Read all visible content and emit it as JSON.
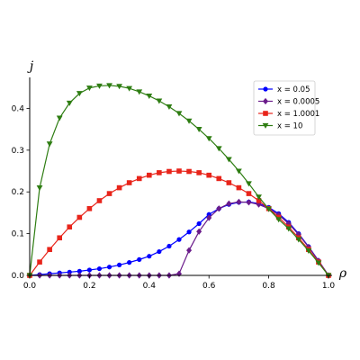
{
  "chart_data": {
    "type": "line",
    "xlabel": "ρ",
    "ylabel": "j",
    "xlim": [
      0.0,
      1.0
    ],
    "ylim": [
      0.0,
      0.47
    ],
    "x_ticks": [
      "0.0",
      "0.2",
      "0.4",
      "0.6",
      "0.8",
      "1.0"
    ],
    "y_ticks": [
      "0.0",
      "0.1",
      "0.2",
      "0.3",
      "0.4"
    ],
    "grid": false,
    "legend_position": "top-right",
    "x": [
      0.0,
      0.0333,
      0.0667,
      0.1,
      0.1333,
      0.1667,
      0.2,
      0.2333,
      0.2667,
      0.3,
      0.3333,
      0.3667,
      0.4,
      0.4333,
      0.4667,
      0.5,
      0.5333,
      0.5667,
      0.6,
      0.6333,
      0.6667,
      0.7,
      0.7333,
      0.7667,
      0.8,
      0.8333,
      0.8667,
      0.9,
      0.9333,
      0.9667,
      1.0
    ],
    "series": [
      {
        "name": "x = 0.05",
        "color": "#0000ff",
        "marker": "circle",
        "values": [
          0.0,
          0.002,
          0.004,
          0.006,
          0.008,
          0.01,
          0.013,
          0.016,
          0.02,
          0.025,
          0.031,
          0.038,
          0.046,
          0.057,
          0.07,
          0.086,
          0.104,
          0.124,
          0.146,
          0.16,
          0.17,
          0.175,
          0.176,
          0.172,
          0.163,
          0.148,
          0.127,
          0.1,
          0.069,
          0.035,
          0.0
        ]
      },
      {
        "name": "x = 0.0005",
        "color": "#6a1b8a",
        "marker": "diamond",
        "values": [
          0.0,
          0.0,
          0.0,
          0.0,
          0.0,
          0.0,
          0.0,
          0.0,
          0.0,
          0.0,
          0.0,
          0.0,
          0.0,
          0.0,
          0.0,
          0.004,
          0.06,
          0.105,
          0.138,
          0.16,
          0.172,
          0.176,
          0.175,
          0.17,
          0.16,
          0.145,
          0.124,
          0.098,
          0.068,
          0.035,
          0.0
        ]
      },
      {
        "name": "x = 1.0001",
        "color": "#e8241a",
        "marker": "square",
        "values": [
          0.0,
          0.032,
          0.062,
          0.09,
          0.116,
          0.139,
          0.16,
          0.179,
          0.196,
          0.21,
          0.222,
          0.232,
          0.24,
          0.246,
          0.249,
          0.25,
          0.249,
          0.246,
          0.24,
          0.232,
          0.222,
          0.21,
          0.196,
          0.179,
          0.16,
          0.139,
          0.116,
          0.09,
          0.062,
          0.032,
          0.0
        ]
      },
      {
        "name": "x = 10",
        "color": "#2e7d12",
        "marker": "triangle-down",
        "values": [
          0.0,
          0.21,
          0.315,
          0.377,
          0.413,
          0.436,
          0.449,
          0.454,
          0.455,
          0.453,
          0.448,
          0.44,
          0.43,
          0.418,
          0.404,
          0.388,
          0.37,
          0.35,
          0.328,
          0.304,
          0.278,
          0.25,
          0.22,
          0.188,
          0.159,
          0.134,
          0.112,
          0.086,
          0.059,
          0.03,
          0.0
        ]
      }
    ]
  }
}
